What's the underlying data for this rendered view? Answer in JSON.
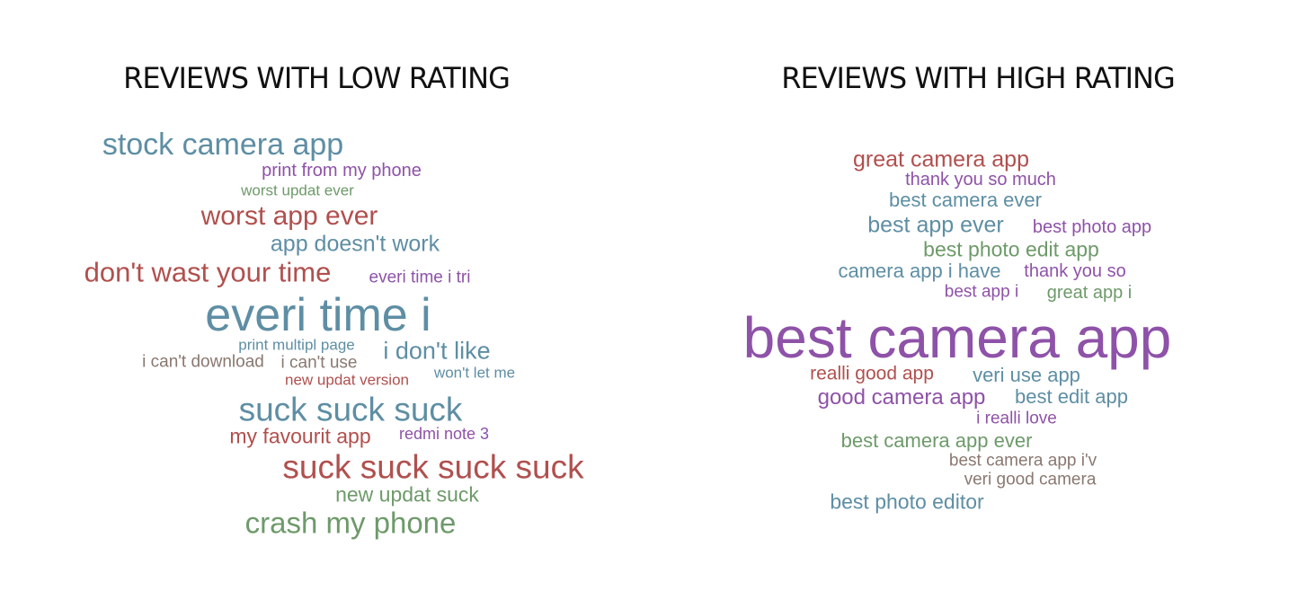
{
  "panels": {
    "low": {
      "title": "REVIEWS WITH LOW RATING"
    },
    "high": {
      "title": "REVIEWS WITH HIGH RATING"
    }
  },
  "colors": {
    "blue": "#5e8ea4",
    "purple": "#8e52a8",
    "green": "#6e9a6a",
    "red": "#b0504e",
    "brown": "#8a7870"
  },
  "low_words": [
    {
      "text": "stock camera app",
      "color": "blue"
    },
    {
      "text": "print from my phone",
      "color": "purple"
    },
    {
      "text": "worst updat ever",
      "color": "green"
    },
    {
      "text": "worst app ever",
      "color": "red"
    },
    {
      "text": "app doesn't work",
      "color": "blue"
    },
    {
      "text": "don't wast your time",
      "color": "red"
    },
    {
      "text": "everi time i tri",
      "color": "purple"
    },
    {
      "text": "everi time i",
      "color": "blue"
    },
    {
      "text": "print multipl page",
      "color": "blue"
    },
    {
      "text": "i don't like",
      "color": "blue"
    },
    {
      "text": "i can't download",
      "color": "brown"
    },
    {
      "text": "i can't use",
      "color": "brown"
    },
    {
      "text": "won't let me",
      "color": "blue"
    },
    {
      "text": "new updat version",
      "color": "red"
    },
    {
      "text": "suck suck suck",
      "color": "blue"
    },
    {
      "text": "my favourit app",
      "color": "red"
    },
    {
      "text": "redmi note 3",
      "color": "purple"
    },
    {
      "text": "suck suck suck suck",
      "color": "red"
    },
    {
      "text": "new updat suck",
      "color": "green"
    },
    {
      "text": "crash my phone",
      "color": "green"
    }
  ],
  "high_words": [
    {
      "text": "great camera app",
      "color": "red"
    },
    {
      "text": "thank you so much",
      "color": "purple"
    },
    {
      "text": "best camera ever",
      "color": "blue"
    },
    {
      "text": "best app ever",
      "color": "blue"
    },
    {
      "text": "best photo app",
      "color": "purple"
    },
    {
      "text": "best photo edit app",
      "color": "green"
    },
    {
      "text": "camera app i have",
      "color": "blue"
    },
    {
      "text": "thank you so",
      "color": "purple"
    },
    {
      "text": "best app i",
      "color": "purple"
    },
    {
      "text": "great app i",
      "color": "green"
    },
    {
      "text": "best camera app",
      "color": "purple"
    },
    {
      "text": "realli good app",
      "color": "red"
    },
    {
      "text": "veri use app",
      "color": "blue"
    },
    {
      "text": "good camera app",
      "color": "purple"
    },
    {
      "text": "best edit app",
      "color": "blue"
    },
    {
      "text": "i realli love",
      "color": "purple"
    },
    {
      "text": "best camera app ever",
      "color": "green"
    },
    {
      "text": "best camera app i'v",
      "color": "brown"
    },
    {
      "text": "veri good camera",
      "color": "brown"
    },
    {
      "text": "best photo editor",
      "color": "blue"
    }
  ]
}
